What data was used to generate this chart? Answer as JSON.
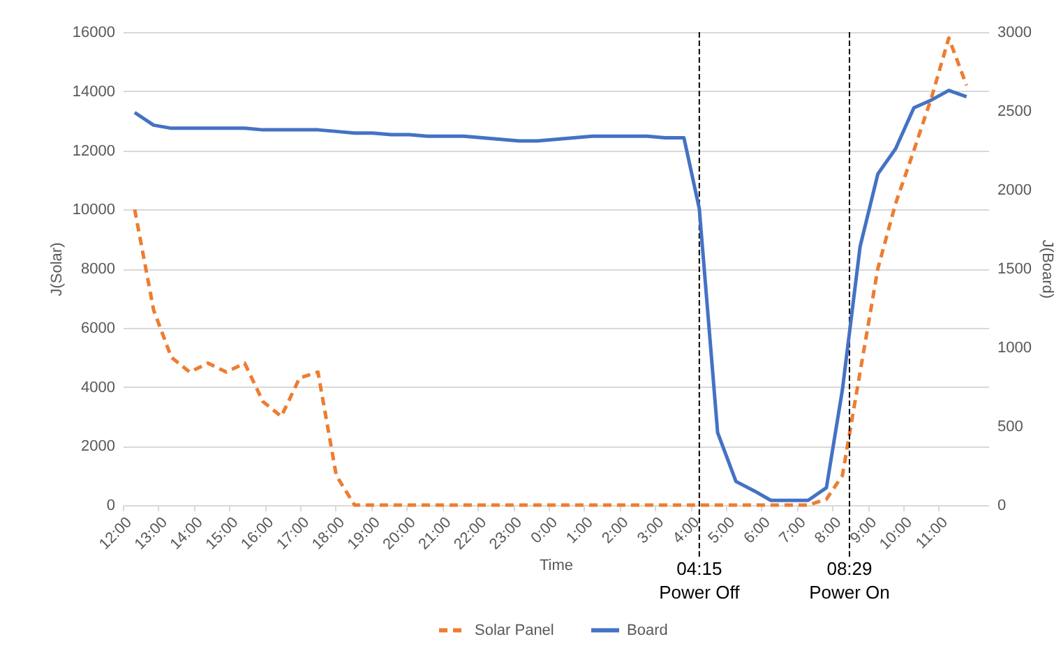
{
  "chart_data": {
    "type": "line",
    "xlabel": "Time",
    "ylabel": "J(Solar)",
    "y2label": "J(Board)",
    "x": [
      "2000-01-01T12:20",
      "2000-01-01T12:52",
      "2000-01-01T13:22",
      "2000-01-01T13:53",
      "2000-01-01T14:24",
      "2000-01-01T14:55",
      "2000-01-01T15:26",
      "2000-01-01T15:57",
      "2000-01-01T16:28",
      "2000-01-01T16:59",
      "2000-01-01T17:30",
      "2000-01-01T18:01",
      "2000-01-01T18:32",
      "2000-01-01T19:02",
      "2000-01-01T19:34",
      "2000-01-01T20:04",
      "2000-01-01T20:35",
      "2000-01-01T21:07",
      "2000-01-01T21:37",
      "2000-01-01T22:08",
      "2000-01-01T22:39",
      "2000-01-01T23:10",
      "2000-01-01T23:41",
      "2000-01-02T00:12",
      "2000-01-02T00:43",
      "2000-01-02T01:14",
      "2000-01-02T01:45",
      "2000-01-02T02:16",
      "2000-01-02T02:47",
      "2000-01-02T03:17",
      "2000-01-02T03:49",
      "2000-01-02T04:15",
      "2000-01-02T04:46",
      "2000-01-02T05:17",
      "2000-01-02T05:48",
      "2000-01-02T06:16",
      "2000-01-02T06:47",
      "2000-01-02T07:19",
      "2000-01-02T07:50",
      "2000-01-02T08:17",
      "2000-01-02T08:47",
      "2000-01-02T09:17",
      "2000-01-02T09:47",
      "2000-01-02T10:18",
      "2000-01-02T10:48",
      "2000-01-02T11:17",
      "2000-01-02T11:47"
    ],
    "series": [
      {
        "name": "Solar Panel",
        "color": "#ed7d31",
        "line_style": "dashed",
        "values": [
          10000,
          6600,
          5000,
          4500,
          4800,
          4500,
          4800,
          3500,
          3000,
          4300,
          4500,
          1000,
          0,
          0,
          0,
          0,
          0,
          0,
          0,
          0,
          0,
          0,
          0,
          0,
          0,
          0,
          0,
          0,
          0,
          0,
          0,
          0,
          0,
          0,
          0,
          0,
          0,
          0,
          200,
          1000,
          4500,
          8000,
          10200,
          12000,
          13800,
          15800,
          14200
        ]
      },
      {
        "name": "Board",
        "color": "#4472c4",
        "line_style": "solid",
        "axis": "y2",
        "values": [
          2490,
          2410,
          2390,
          2390,
          2390,
          2390,
          2390,
          2380,
          2380,
          2380,
          2380,
          2370,
          2360,
          2360,
          2350,
          2350,
          2340,
          2340,
          2340,
          2330,
          2320,
          2310,
          2310,
          2320,
          2330,
          2340,
          2340,
          2340,
          2340,
          2330,
          2330,
          1880,
          460,
          150,
          90,
          30,
          30,
          30,
          110,
          730,
          1640,
          2100,
          2260,
          2520,
          2570,
          2630,
          2590
        ]
      }
    ],
    "xlim": [
      "2000-01-01T12:00",
      "2000-01-02T12:24"
    ],
    "xticks": [
      {
        "value": "2000-01-01T12:00",
        "label": "12:00"
      },
      {
        "value": "2000-01-01T13:00",
        "label": "13:00"
      },
      {
        "value": "2000-01-01T14:00",
        "label": "14:00"
      },
      {
        "value": "2000-01-01T15:00",
        "label": "15:00"
      },
      {
        "value": "2000-01-01T16:00",
        "label": "16:00"
      },
      {
        "value": "2000-01-01T17:00",
        "label": "17:00"
      },
      {
        "value": "2000-01-01T18:00",
        "label": "18:00"
      },
      {
        "value": "2000-01-01T19:00",
        "label": "19:00"
      },
      {
        "value": "2000-01-01T20:00",
        "label": "20:00"
      },
      {
        "value": "2000-01-01T21:00",
        "label": "21:00"
      },
      {
        "value": "2000-01-01T22:00",
        "label": "22:00"
      },
      {
        "value": "2000-01-01T23:00",
        "label": "23:00"
      },
      {
        "value": "2000-01-02T00:00",
        "label": "0:00"
      },
      {
        "value": "2000-01-02T01:00",
        "label": "1:00"
      },
      {
        "value": "2000-01-02T02:00",
        "label": "2:00"
      },
      {
        "value": "2000-01-02T03:00",
        "label": "3:00"
      },
      {
        "value": "2000-01-02T04:00",
        "label": "4:00"
      },
      {
        "value": "2000-01-02T05:00",
        "label": "5:00"
      },
      {
        "value": "2000-01-02T06:00",
        "label": "6:00"
      },
      {
        "value": "2000-01-02T07:00",
        "label": "7:00"
      },
      {
        "value": "2000-01-02T08:00",
        "label": "8:00"
      },
      {
        "value": "2000-01-02T09:00",
        "label": "9:00"
      },
      {
        "value": "2000-01-02T10:00",
        "label": "10:00"
      },
      {
        "value": "2000-01-02T11:00",
        "label": "11:00"
      }
    ],
    "ylim": [
      0,
      16000
    ],
    "yticks": [
      0,
      2000,
      4000,
      6000,
      8000,
      10000,
      12000,
      14000,
      16000
    ],
    "y2lim": [
      0,
      3000
    ],
    "y2ticks": [
      0,
      500,
      1000,
      1500,
      2000,
      2500,
      3000
    ],
    "ref_lines": [
      {
        "axis": "x",
        "value": "2000-01-02T04:15",
        "label": "04:15\nPower Off",
        "color": "#000000",
        "line_style": "dashed"
      },
      {
        "axis": "x",
        "value": "2000-01-02T08:29",
        "label": "08:29\nPower On",
        "color": "#000000",
        "line_style": "dashed"
      }
    ],
    "grid": "y",
    "legend": "bottom"
  }
}
